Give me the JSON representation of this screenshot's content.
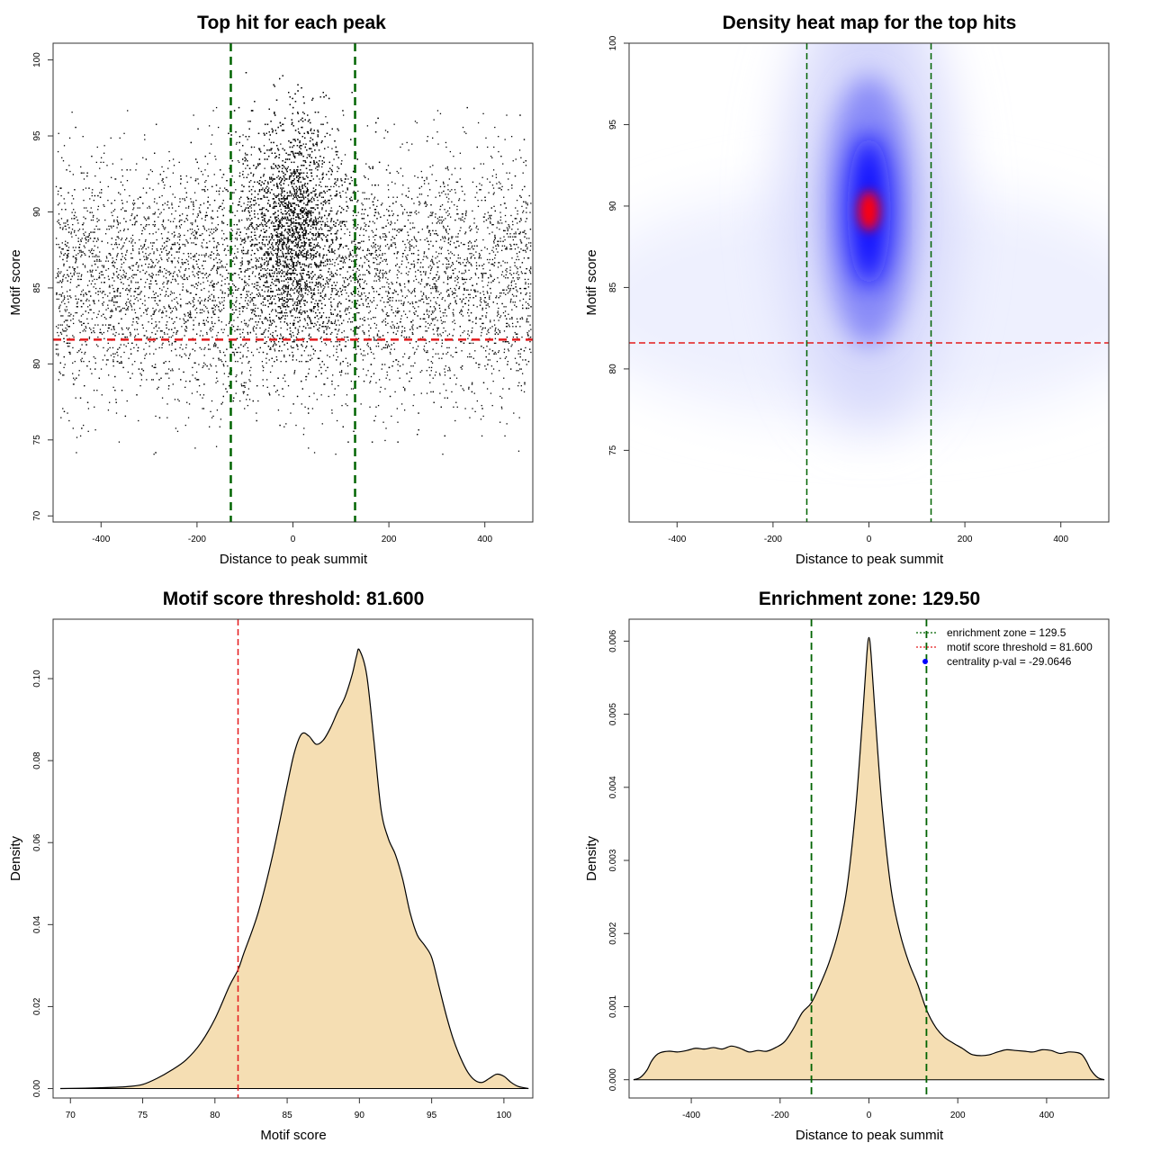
{
  "chart_data": [
    {
      "type": "scatter",
      "title": "Top hit for each peak",
      "xlabel": "Distance to peak summit",
      "ylabel": "Motif score",
      "xlim": [
        -500,
        500
      ],
      "ylim": [
        69.6,
        101.1
      ],
      "xticks": [
        -400,
        -200,
        0,
        200,
        400
      ],
      "yticks": [
        70,
        75,
        80,
        85,
        90,
        95,
        100
      ],
      "point_color": "#000000",
      "point_count_approx": 12000,
      "distribution": {
        "background": {
          "x_range": [
            -495,
            495
          ],
          "y_center": 85.5,
          "y_sd": 4.0
        },
        "central": {
          "x_center": 0,
          "x_sd": 40,
          "y_center": 89.0,
          "y_sd": 3.6
        }
      },
      "vlines": [
        {
          "x": -129.5,
          "color": "#006400",
          "style": "dashed"
        },
        {
          "x": 129.5,
          "color": "#006400",
          "style": "dashed"
        }
      ],
      "hlines": [
        {
          "y": 81.6,
          "color": "#e41a1c",
          "style": "dashed"
        }
      ],
      "grid": false
    },
    {
      "type": "heatmap",
      "title": "Density heat map for the top hits",
      "xlabel": "Distance to peak summit",
      "ylabel": "Motif score",
      "xlim": [
        -500,
        500
      ],
      "ylim": [
        70.6,
        100.0
      ],
      "xticks": [
        -400,
        -200,
        0,
        200,
        400
      ],
      "yticks": [
        75,
        80,
        85,
        90,
        95,
        100
      ],
      "color_scale": [
        "#ffffff",
        "#0000ff",
        "#ff0000"
      ],
      "peak": {
        "x": 0,
        "y": 89.7
      },
      "vlines": [
        {
          "x": -129.5,
          "color": "#006400",
          "style": "dashed"
        },
        {
          "x": 129.5,
          "color": "#006400",
          "style": "dashed"
        }
      ],
      "hlines": [
        {
          "y": 81.6,
          "color": "#e41a1c",
          "style": "dashed"
        }
      ],
      "grid": false
    },
    {
      "type": "area",
      "title": "Motif score threshold: 81.600",
      "xlabel": "Motif score",
      "ylabel": "Density",
      "xlim": [
        68.8,
        102.0
      ],
      "ylim": [
        -0.0023,
        0.1145
      ],
      "xticks": [
        70,
        75,
        80,
        85,
        90,
        95,
        100
      ],
      "yticks": [
        0.0,
        0.02,
        0.04,
        0.06,
        0.08,
        0.1
      ],
      "ytick_labels": [
        "0.00",
        "0.02",
        "0.04",
        "0.06",
        "0.08",
        "0.10"
      ],
      "fill_color": "#f5deb3",
      "x": [
        69.3,
        71,
        73,
        74,
        75,
        76,
        77,
        78,
        79,
        80,
        81,
        81.6,
        82,
        83,
        84,
        85,
        85.5,
        86,
        86.5,
        87,
        87.5,
        88,
        88.5,
        89,
        89.5,
        89.8,
        90,
        90.5,
        91,
        91.5,
        92,
        92.5,
        93,
        93.5,
        94,
        94.5,
        95,
        95.5,
        96,
        96.5,
        97,
        97.5,
        98,
        98.5,
        99,
        99.5,
        100,
        100.5,
        101,
        101.7
      ],
      "y": [
        0.0,
        0.0001,
        0.0003,
        0.0005,
        0.001,
        0.0025,
        0.0045,
        0.007,
        0.011,
        0.017,
        0.025,
        0.029,
        0.033,
        0.043,
        0.057,
        0.074,
        0.082,
        0.0865,
        0.086,
        0.084,
        0.085,
        0.088,
        0.092,
        0.0955,
        0.101,
        0.1055,
        0.107,
        0.101,
        0.085,
        0.068,
        0.061,
        0.057,
        0.051,
        0.043,
        0.0375,
        0.035,
        0.032,
        0.025,
        0.018,
        0.012,
        0.0075,
        0.004,
        0.002,
        0.0015,
        0.0025,
        0.0035,
        0.003,
        0.0015,
        0.0005,
        0.0
      ],
      "vlines": [
        {
          "x": 81.6,
          "color": "#e41a1c",
          "style": "dashed"
        }
      ],
      "grid": false
    },
    {
      "type": "area",
      "title": "Enrichment zone: 129.50",
      "xlabel": "Distance to peak summit",
      "ylabel": "Density",
      "xlim": [
        -540,
        540
      ],
      "ylim": [
        -0.00025,
        0.0063
      ],
      "xticks": [
        -400,
        -200,
        0,
        200,
        400
      ],
      "yticks": [
        0.0,
        0.001,
        0.002,
        0.003,
        0.004,
        0.005,
        0.006
      ],
      "ytick_labels": [
        "0.000",
        "0.001",
        "0.002",
        "0.003",
        "0.004",
        "0.005",
        "0.006"
      ],
      "fill_color": "#f5deb3",
      "x": [
        -530,
        -515,
        -500,
        -490,
        -480,
        -470,
        -450,
        -430,
        -410,
        -390,
        -370,
        -350,
        -330,
        -310,
        -290,
        -270,
        -250,
        -230,
        -210,
        -190,
        -170,
        -150,
        -130,
        -110,
        -90,
        -70,
        -50,
        -30,
        -15,
        -5,
        0,
        5,
        15,
        30,
        50,
        70,
        90,
        110,
        130,
        150,
        170,
        190,
        210,
        230,
        250,
        270,
        290,
        310,
        330,
        350,
        370,
        390,
        410,
        430,
        450,
        470,
        480,
        490,
        500,
        515,
        530
      ],
      "y": [
        0.0,
        3e-05,
        0.00013,
        0.00025,
        0.00033,
        0.00037,
        0.00039,
        0.00038,
        0.0004,
        0.00043,
        0.00042,
        0.00044,
        0.00042,
        0.00046,
        0.00043,
        0.00038,
        0.0004,
        0.00039,
        0.00044,
        0.00052,
        0.0007,
        0.00092,
        0.00105,
        0.0013,
        0.0016,
        0.002,
        0.0026,
        0.0037,
        0.0049,
        0.0058,
        0.00605,
        0.0058,
        0.0049,
        0.0037,
        0.0026,
        0.002,
        0.0016,
        0.0013,
        0.00095,
        0.00072,
        0.00058,
        0.0005,
        0.00043,
        0.00035,
        0.00033,
        0.00034,
        0.00038,
        0.00041,
        0.0004,
        0.00039,
        0.00038,
        0.00041,
        0.0004,
        0.00036,
        0.00038,
        0.00037,
        0.00034,
        0.00025,
        0.00013,
        3e-05,
        0.0
      ],
      "vlines": [
        {
          "x": -129.5,
          "color": "#006400",
          "style": "dashed"
        },
        {
          "x": 129.5,
          "color": "#006400",
          "style": "dashed"
        }
      ],
      "legend": {
        "placement": "top-right",
        "entries": [
          {
            "label": "enrichment zone = 129.5",
            "color": "#006400",
            "kind": "dotted-line"
          },
          {
            "label": "motif score threshold = 81.600",
            "color": "#e41a1c",
            "kind": "dotted-line"
          },
          {
            "label": "centrality p-val = -29.0646",
            "color": "#0000ff",
            "kind": "point"
          }
        ]
      },
      "grid": false
    }
  ]
}
